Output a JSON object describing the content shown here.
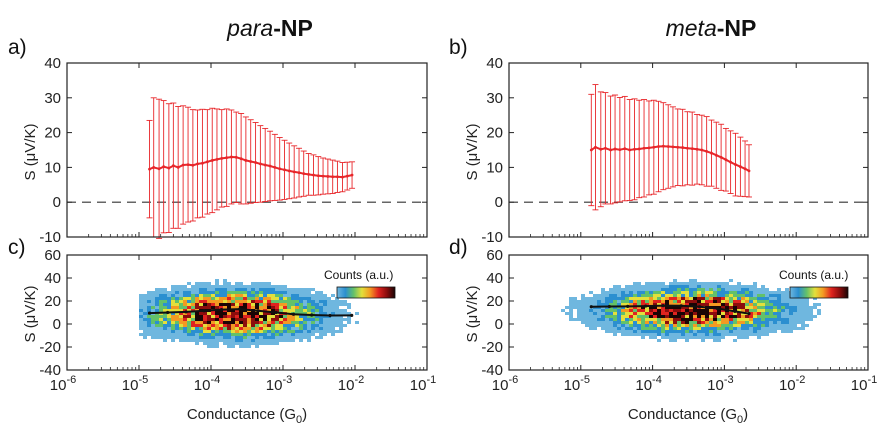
{
  "titles": {
    "left_italic": "para",
    "left_bold": "-NP",
    "right_italic": "meta",
    "right_bold": "-NP"
  },
  "colorbar_label": "Counts (a.u.)",
  "colors": {
    "errorbar": "#e8262a",
    "mean_line_2d": "#111111",
    "dashed_zero": "#333333",
    "colormap": [
      "#ffffff",
      "#6fb7df",
      "#2b8fd0",
      "#63c16a",
      "#e3e03b",
      "#f39a22",
      "#e0231f",
      "#8c0d0d",
      "#1a0505"
    ]
  },
  "chart_data": [
    {
      "id": "a",
      "panel_label": "a)",
      "type": "line",
      "title": "para-NP",
      "xlabel": "",
      "ylabel": "S (μV/K)",
      "x_scale": "log",
      "xlim": [
        1e-06,
        0.1
      ],
      "ylim": [
        -10,
        40
      ],
      "yticks": [
        -10,
        0,
        10,
        20,
        30,
        40
      ],
      "x_tick_labels": [],
      "reference_line": {
        "y": 0,
        "style": "dashed"
      },
      "series": [
        {
          "x": [
            1.4e-05,
            1.6e-05,
            1.9e-05,
            2.2e-05,
            2.6e-05,
            3e-05,
            3.5e-05,
            4.1e-05,
            4.8e-05,
            5.6e-05,
            6.5e-05,
            7.6e-05,
            8.9e-05,
            0.000104,
            0.000121,
            0.000141,
            0.000165,
            0.000192,
            0.000224,
            0.000262,
            0.000305,
            0.000356,
            0.000416,
            0.000485,
            0.000566,
            0.000661,
            0.000771,
            0.0009,
            0.00105,
            0.00122,
            0.00143,
            0.00167,
            0.00194,
            0.00227,
            0.00265,
            0.00309,
            0.0036,
            0.0042,
            0.0049,
            0.0057,
            0.0067,
            0.0078,
            0.0091
          ],
          "y": [
            9.5,
            10.0,
            9.6,
            10.2,
            9.8,
            10.5,
            10.0,
            10.7,
            10.8,
            10.6,
            11.0,
            11.2,
            11.6,
            12.0,
            12.3,
            12.6,
            12.8,
            13.0,
            12.9,
            12.5,
            12.0,
            11.7,
            11.4,
            11.0,
            10.7,
            10.4,
            10.0,
            9.6,
            9.3,
            9.0,
            8.7,
            8.5,
            8.2,
            8.0,
            7.8,
            7.6,
            7.5,
            7.4,
            7.3,
            7.3,
            7.2,
            7.5,
            7.8
          ],
          "err": [
            14.0,
            20.0,
            20.0,
            19.0,
            18.5,
            18.0,
            17.5,
            17.0,
            16.5,
            16.0,
            15.5,
            15.5,
            15.0,
            15.0,
            14.5,
            14.0,
            14.0,
            13.5,
            13.0,
            13.0,
            12.5,
            12.0,
            11.5,
            11.0,
            10.5,
            10.0,
            9.5,
            9.0,
            8.5,
            8.0,
            7.5,
            7.0,
            6.5,
            6.0,
            5.8,
            5.5,
            5.2,
            5.0,
            4.8,
            4.5,
            4.2,
            4.0,
            3.8
          ]
        }
      ]
    },
    {
      "id": "b",
      "panel_label": "b)",
      "type": "line",
      "title": "meta-NP",
      "xlabel": "",
      "ylabel": "S (μV/K)",
      "x_scale": "log",
      "xlim": [
        1e-06,
        0.1
      ],
      "ylim": [
        -10,
        40
      ],
      "yticks": [
        -10,
        0,
        10,
        20,
        30,
        40
      ],
      "x_tick_labels": [],
      "reference_line": {
        "y": 0,
        "style": "dashed"
      },
      "series": [
        {
          "x": [
            1.4e-05,
            1.6e-05,
            1.9e-05,
            2.2e-05,
            2.6e-05,
            3e-05,
            3.5e-05,
            4.1e-05,
            4.8e-05,
            5.6e-05,
            6.5e-05,
            7.6e-05,
            8.9e-05,
            0.000104,
            0.000121,
            0.000141,
            0.000165,
            0.000192,
            0.000224,
            0.000262,
            0.000305,
            0.000356,
            0.000416,
            0.000485,
            0.000566,
            0.000661,
            0.000771,
            0.0009,
            0.00105,
            0.00122,
            0.00143,
            0.00167,
            0.00194,
            0.0022
          ],
          "y": [
            15.0,
            15.8,
            15.2,
            15.5,
            15.0,
            15.3,
            15.1,
            15.4,
            15.0,
            15.2,
            15.3,
            15.5,
            15.6,
            15.8,
            16.0,
            16.1,
            16.0,
            15.9,
            15.8,
            15.7,
            15.5,
            15.4,
            15.2,
            15.0,
            14.6,
            14.1,
            13.5,
            12.9,
            12.2,
            11.5,
            10.8,
            10.2,
            9.6,
            9.0
          ],
          "err": [
            16.0,
            18.0,
            16.5,
            16.0,
            15.5,
            15.5,
            15.0,
            15.0,
            14.5,
            14.5,
            14.0,
            14.0,
            13.5,
            13.5,
            13.0,
            12.5,
            12.0,
            11.5,
            11.0,
            11.0,
            10.5,
            10.5,
            10.0,
            10.0,
            10.0,
            9.5,
            9.5,
            9.5,
            9.0,
            9.0,
            9.0,
            8.5,
            8.0,
            7.5
          ]
        }
      ]
    },
    {
      "id": "c",
      "panel_label": "c)",
      "type": "heatmap",
      "xlabel": "Conductance (G0)",
      "ylabel": "S (μV/K)",
      "x_scale": "log",
      "xlim": [
        1e-06,
        0.1
      ],
      "ylim": [
        -40,
        60
      ],
      "yticks": [
        -40,
        -20,
        0,
        20,
        40,
        60
      ],
      "x_tick_exponents": [
        -6,
        -5,
        -4,
        -3,
        -2,
        -1
      ],
      "x_range": [
        1e-05,
        0.03
      ],
      "density_center": {
        "x": 0.0002,
        "y": 10
      },
      "density_spread": {
        "log10_x": 0.7,
        "y": 12
      },
      "mean_line": {
        "x": [
          1.4e-05,
          2.5e-05,
          4.5e-05,
          8e-05,
          0.00014,
          0.00025,
          0.00045,
          0.0008,
          0.0014,
          0.0025,
          0.0045,
          0.009
        ],
        "y": [
          9.5,
          10.0,
          10.5,
          11.5,
          12.5,
          13.0,
          11.5,
          10.0,
          8.5,
          7.8,
          7.4,
          7.5
        ]
      }
    },
    {
      "id": "d",
      "panel_label": "d)",
      "type": "heatmap",
      "xlabel": "Conductance (G0)",
      "ylabel": "S (μV/K)",
      "x_scale": "log",
      "xlim": [
        1e-06,
        0.1
      ],
      "ylim": [
        -40,
        60
      ],
      "yticks": [
        -40,
        -20,
        0,
        20,
        40,
        60
      ],
      "x_tick_exponents": [
        -6,
        -5,
        -4,
        -3,
        -2,
        -1
      ],
      "x_range": [
        3e-06,
        0.02
      ],
      "density_center": {
        "x": 0.00035,
        "y": 13
      },
      "density_spread": {
        "log10_x": 0.75,
        "y": 11
      },
      "mean_line": {
        "x": [
          1.4e-05,
          2.5e-05,
          4.5e-05,
          8e-05,
          0.00014,
          0.00025,
          0.00045,
          0.0008,
          0.0014,
          0.0022
        ],
        "y": [
          15.0,
          15.2,
          15.3,
          15.6,
          16.0,
          15.8,
          15.0,
          13.5,
          11.0,
          9.0
        ]
      }
    }
  ]
}
